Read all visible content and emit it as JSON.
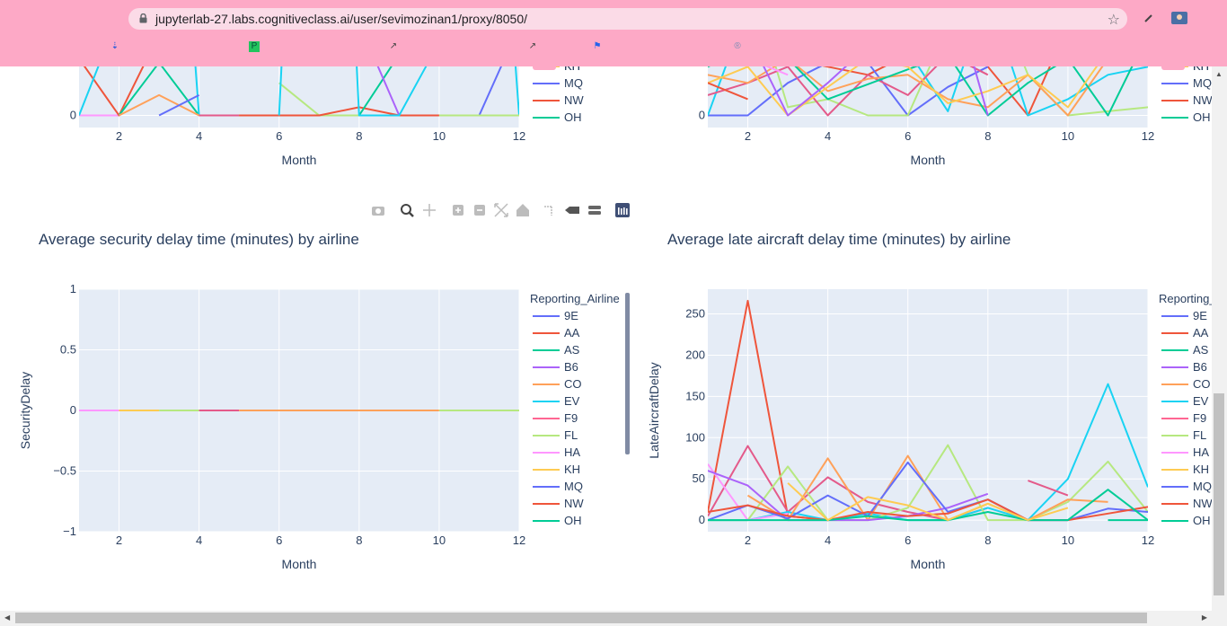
{
  "browser": {
    "url": "jupyterlab-27.labs.cognitiveclass.ai/user/sevimozinan1/proxy/8050/",
    "accent": "#fda9c6"
  },
  "modebar": {
    "icons": [
      "camera-icon",
      "zoom-icon",
      "pan-icon",
      "zoom-in-icon",
      "zoom-out-icon",
      "autoscale-icon",
      "home-icon",
      "spike-lines-icon",
      "hover-closest-icon",
      "hover-compare-icon",
      "plotly-logo-icon"
    ]
  },
  "chart_data": [
    {
      "id": "top-left",
      "type": "line",
      "title": "",
      "xlabel": "Month",
      "ylabel": "",
      "xlim": [
        1,
        12
      ],
      "ylim": [
        -3,
        28
      ],
      "yticks": [
        0,
        20
      ],
      "xticks": [
        2,
        4,
        6,
        8,
        10,
        12
      ],
      "legend_title": "",
      "legend": [
        "KH",
        "MQ",
        "NW",
        "OH"
      ],
      "series": [
        {
          "name": "HA",
          "color": "#ff97ff",
          "x": [
            1,
            2
          ],
          "y": [
            0,
            0
          ]
        },
        {
          "name": "NW",
          "color": "#ef553b",
          "x": [
            1,
            2,
            3
          ],
          "y": [
            14,
            0,
            20
          ]
        },
        {
          "name": "OH",
          "color": "#00cc96",
          "x": [
            2,
            3,
            4
          ],
          "y": [
            0,
            13,
            0
          ]
        },
        {
          "name": "EV",
          "color": "#19d3f3",
          "x": [
            1,
            1.8,
            2.2,
            3.7,
            4
          ],
          "y": [
            0,
            20,
            40,
            40,
            0
          ]
        },
        {
          "name": "CO",
          "color": "#ffa15a",
          "x": [
            2,
            3,
            4,
            5,
            6,
            7,
            8,
            9,
            10,
            11,
            12
          ],
          "y": [
            0,
            5,
            0,
            0,
            0,
            0,
            0,
            0,
            0,
            0,
            0
          ]
        },
        {
          "name": "MQ",
          "color": "#636efa",
          "x": [
            3,
            4
          ],
          "y": [
            0,
            5
          ]
        },
        {
          "name": "F9",
          "color": "#e45a8a",
          "x": [
            4,
            5
          ],
          "y": [
            0,
            0
          ]
        },
        {
          "name": "FL",
          "color": "#b6e880",
          "x": [
            6,
            7,
            8
          ],
          "y": [
            8,
            0,
            0
          ]
        },
        {
          "name": "NW",
          "color": "#ef553b",
          "x": [
            5,
            7,
            8,
            9,
            10
          ],
          "y": [
            0,
            0,
            2,
            0,
            0
          ]
        },
        {
          "name": "OH",
          "color": "#00cc96",
          "x": [
            8,
            9
          ],
          "y": [
            0,
            15
          ]
        },
        {
          "name": "AB",
          "color": "#ab63fa",
          "x": [
            7.9,
            9
          ],
          "y": [
            25,
            0
          ]
        },
        {
          "name": "EV",
          "color": "#19d3f3",
          "x": [
            6,
            6.2
          ],
          "y": [
            0,
            40
          ]
        },
        {
          "name": "EV",
          "color": "#19d3f3",
          "x": [
            7.8,
            8,
            9,
            10,
            10.5
          ],
          "y": [
            40,
            0,
            0,
            18,
            40
          ]
        },
        {
          "name": "MQ",
          "color": "#636efa",
          "x": [
            11,
            12
          ],
          "y": [
            0,
            22
          ]
        },
        {
          "name": "EV",
          "color": "#19d3f3",
          "x": [
            11.7,
            12
          ],
          "y": [
            40,
            0
          ]
        },
        {
          "name": "FL",
          "color": "#b6e880",
          "x": [
            10,
            12
          ],
          "y": [
            0,
            0
          ]
        }
      ]
    },
    {
      "id": "top-right",
      "type": "line",
      "title": "",
      "xlabel": "Month",
      "ylabel": "",
      "xlim": [
        1,
        12
      ],
      "ylim": [
        -3,
        28
      ],
      "yticks": [
        0,
        20
      ],
      "xticks": [
        2,
        4,
        6,
        8,
        10,
        12
      ],
      "legend_title": "",
      "legend": [
        "KH",
        "MQ",
        "NW",
        "OH"
      ],
      "series": [
        {
          "name": "NW",
          "color": "#ef553b",
          "x": [
            1,
            2,
            3,
            4,
            5,
            6,
            7,
            8,
            9,
            10,
            11,
            12
          ],
          "y": [
            20,
            24,
            14,
            12,
            10,
            15,
            35,
            12,
            0,
            22,
            17,
            14
          ]
        },
        {
          "name": "MQ",
          "color": "#636efa",
          "x": [
            1,
            2,
            3,
            4,
            5,
            6,
            7,
            8
          ],
          "y": [
            0,
            0,
            8,
            13,
            13,
            0,
            7,
            12
          ]
        },
        {
          "name": "EV",
          "color": "#19d3f3",
          "x": [
            1,
            2,
            3,
            4,
            5,
            6,
            7,
            8,
            9,
            10,
            11,
            12
          ],
          "y": [
            0,
            27,
            26,
            17,
            16,
            16,
            1,
            30,
            0,
            4,
            10,
            12
          ]
        },
        {
          "name": "FL",
          "color": "#b6e880",
          "x": [
            1,
            2,
            3,
            4,
            5,
            6,
            7,
            8,
            9,
            10,
            11,
            12
          ],
          "y": [
            15,
            35,
            2,
            4,
            0,
            0,
            22,
            35,
            10,
            0,
            1,
            2
          ]
        },
        {
          "name": "F9",
          "color": "#e45a8a",
          "x": [
            1,
            2,
            3,
            4,
            5,
            6,
            7,
            8
          ],
          "y": [
            5,
            8,
            12,
            0,
            10,
            5,
            15,
            10
          ]
        },
        {
          "name": "CO",
          "color": "#ffa15a",
          "x": [
            1,
            2,
            3,
            4,
            5,
            6,
            7,
            8,
            9,
            10,
            11
          ],
          "y": [
            10,
            8,
            14,
            6,
            9,
            10,
            4,
            2,
            10,
            0,
            14
          ]
        },
        {
          "name": "OH",
          "color": "#00cc96",
          "x": [
            1,
            2,
            3,
            4,
            7,
            8,
            9,
            10,
            11,
            12
          ],
          "y": [
            12,
            17,
            14,
            4,
            15,
            0,
            8,
            14,
            0,
            20
          ]
        },
        {
          "name": "KH",
          "color": "#fecb52",
          "x": [
            1,
            2,
            3,
            5,
            6,
            7,
            8,
            9,
            10,
            11
          ],
          "y": [
            8,
            12,
            0,
            14,
            12,
            3,
            6,
            10,
            2,
            16
          ]
        },
        {
          "name": "AS",
          "color": "#ab63fa",
          "x": [
            1,
            2,
            3,
            4,
            7,
            8
          ],
          "y": [
            15,
            20,
            0,
            8,
            35,
            0
          ]
        },
        {
          "name": "HA",
          "color": "#ff97ff",
          "x": [
            1,
            2,
            3
          ],
          "y": [
            18,
            14,
            10
          ]
        },
        {
          "name": "AA",
          "color": "#ef553b",
          "x": [
            1,
            2
          ],
          "y": [
            8,
            4
          ]
        }
      ]
    },
    {
      "id": "bottom-left",
      "type": "line",
      "title": "Average security delay time (minutes) by airline",
      "xlabel": "Month",
      "ylabel": "SecurityDelay",
      "xlim": [
        1,
        12
      ],
      "ylim": [
        -1,
        1
      ],
      "yticks": [
        -1,
        -0.5,
        0,
        0.5,
        1
      ],
      "ytick_labels": [
        "−1",
        "−0.5",
        "0",
        "0.5",
        "1"
      ],
      "xticks": [
        2,
        4,
        6,
        8,
        10,
        12
      ],
      "legend_title": "Reporting_Airline",
      "legend": [
        "9E",
        "AA",
        "AS",
        "B6",
        "CO",
        "EV",
        "F9",
        "FL",
        "HA",
        "KH",
        "MQ",
        "NW",
        "OH"
      ],
      "series": [
        {
          "name": "HA",
          "color": "#ff97ff",
          "x": [
            1,
            2
          ],
          "y": [
            0,
            0
          ]
        },
        {
          "name": "KH",
          "color": "#fecb52",
          "x": [
            2,
            3
          ],
          "y": [
            0,
            0
          ]
        },
        {
          "name": "FL",
          "color": "#b6e880",
          "x": [
            3,
            4
          ],
          "y": [
            0,
            0
          ]
        },
        {
          "name": "F9",
          "color": "#e45a8a",
          "x": [
            4,
            5
          ],
          "y": [
            0,
            0
          ]
        },
        {
          "name": "CO",
          "color": "#ffa15a",
          "x": [
            5,
            10
          ],
          "y": [
            0,
            0
          ]
        },
        {
          "name": "FL",
          "color": "#b6e880",
          "x": [
            10,
            12
          ],
          "y": [
            0,
            0
          ]
        }
      ]
    },
    {
      "id": "bottom-right",
      "type": "line",
      "title": "Average late aircraft delay time (minutes) by airline",
      "xlabel": "Month",
      "ylabel": "LateAircraftDelay",
      "xlim": [
        1,
        12
      ],
      "ylim": [
        -14,
        280
      ],
      "yticks": [
        0,
        50,
        100,
        150,
        200,
        250
      ],
      "xticks": [
        2,
        4,
        6,
        8,
        10,
        12
      ],
      "legend_title": "Reporting_",
      "legend": [
        "9E",
        "AA",
        "AS",
        "B6",
        "CO",
        "EV",
        "F9",
        "FL",
        "HA",
        "KH",
        "MQ",
        "NW",
        "OH"
      ],
      "series": [
        {
          "name": "AA",
          "color": "#ef553b",
          "x": [
            1,
            2,
            3,
            4
          ],
          "y": [
            10,
            266,
            5,
            0
          ]
        },
        {
          "name": "F9",
          "color": "#e45a8a",
          "x": [
            1,
            2,
            3,
            4,
            5,
            6,
            7,
            8
          ],
          "y": [
            5,
            90,
            10,
            52,
            22,
            10,
            0,
            15
          ]
        },
        {
          "name": "EV",
          "color": "#19d3f3",
          "x": [
            1,
            2,
            3,
            4,
            5,
            6,
            7,
            8,
            9,
            10,
            11,
            12
          ],
          "y": [
            0,
            0,
            10,
            0,
            8,
            0,
            0,
            15,
            0,
            50,
            165,
            40
          ]
        },
        {
          "name": "FL",
          "color": "#b6e880",
          "x": [
            1,
            2,
            3,
            4,
            5,
            6,
            7,
            8,
            9,
            10,
            11,
            12
          ],
          "y": [
            0,
            0,
            65,
            0,
            0,
            15,
            91,
            0,
            0,
            22,
            71,
            10
          ]
        },
        {
          "name": "CO",
          "color": "#ffa15a",
          "x": [
            2,
            3,
            4,
            5,
            6,
            7,
            8,
            9,
            10,
            11
          ],
          "y": [
            30,
            0,
            75,
            0,
            78,
            0,
            20,
            0,
            25,
            22
          ]
        },
        {
          "name": "HA",
          "color": "#ff97ff",
          "x": [
            1,
            2,
            3
          ],
          "y": [
            68,
            0,
            8
          ]
        },
        {
          "name": "B6",
          "color": "#ab63fa",
          "x": [
            1,
            2,
            3,
            4,
            5,
            6,
            7,
            8
          ],
          "y": [
            60,
            42,
            0,
            0,
            0,
            5,
            15,
            32
          ]
        },
        {
          "name": "MQ",
          "color": "#636efa",
          "x": [
            1,
            2,
            3,
            4,
            5,
            6,
            7,
            8,
            9,
            10,
            11,
            12
          ],
          "y": [
            0,
            18,
            2,
            30,
            5,
            70,
            10,
            25,
            0,
            0,
            14,
            10
          ]
        },
        {
          "name": "NW",
          "color": "#ef553b",
          "x": [
            1,
            2,
            3,
            4,
            5,
            6,
            7,
            8,
            9,
            10,
            11,
            12
          ],
          "y": [
            10,
            18,
            5,
            0,
            10,
            5,
            8,
            25,
            0,
            0,
            8,
            16
          ]
        },
        {
          "name": "OH",
          "color": "#00cc96",
          "x": [
            1,
            2,
            3,
            4,
            5,
            6,
            7,
            8,
            9,
            10,
            11,
            12
          ],
          "y": [
            0,
            0,
            0,
            0,
            5,
            0,
            0,
            10,
            0,
            0,
            37,
            0
          ]
        },
        {
          "name": "KH",
          "color": "#fecb52",
          "x": [
            3,
            4,
            5,
            6,
            7,
            8,
            9,
            10
          ],
          "y": [
            45,
            0,
            28,
            18,
            0,
            20,
            0,
            15
          ]
        },
        {
          "name": "F9",
          "color": "#e45a8a",
          "x": [
            9,
            10
          ],
          "y": [
            48,
            30
          ]
        },
        {
          "name": "AS",
          "color": "#00cc96",
          "x": [
            11,
            12
          ],
          "y": [
            0,
            0
          ]
        }
      ]
    }
  ]
}
